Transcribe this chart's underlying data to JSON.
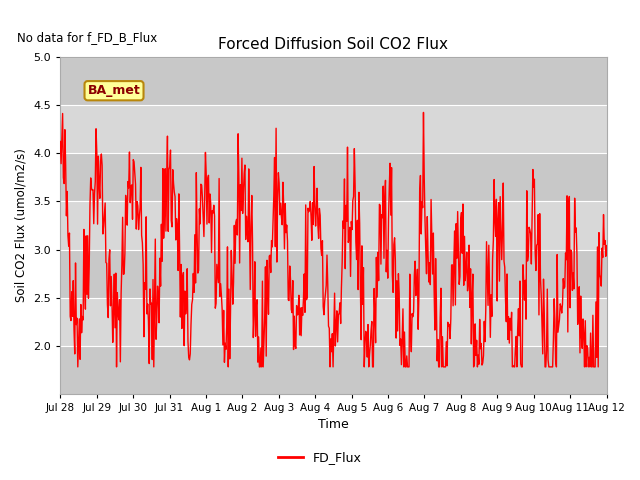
{
  "title": "Forced Diffusion Soil CO2 Flux",
  "top_left_text": "No data for f_FD_B_Flux",
  "xlabel": "Time",
  "ylabel": "Soil CO2 Flux (umol/m2/s)",
  "ylim": [
    1.5,
    5.0
  ],
  "yticks": [
    2.0,
    2.5,
    3.0,
    3.5,
    4.0,
    4.5,
    5.0
  ],
  "line_color": "#FF0000",
  "line_width": 1.0,
  "legend_label": "FD_Flux",
  "plot_bg_color": "#DCDCDC",
  "annotation_text": "BA_met",
  "x_tick_labels": [
    "Jul 28",
    "Jul 29",
    "Jul 30",
    "Jul 31",
    "Aug 1",
    "Aug 2",
    "Aug 3",
    "Aug 4",
    "Aug 5",
    "Aug 6",
    "Aug 7",
    "Aug 8",
    "Aug 9",
    "Aug 10",
    "Aug 11",
    "Aug 12"
  ],
  "n_days": 15,
  "seed": 42,
  "band_colors": [
    "#C8C8C8",
    "#E0E0E0"
  ]
}
